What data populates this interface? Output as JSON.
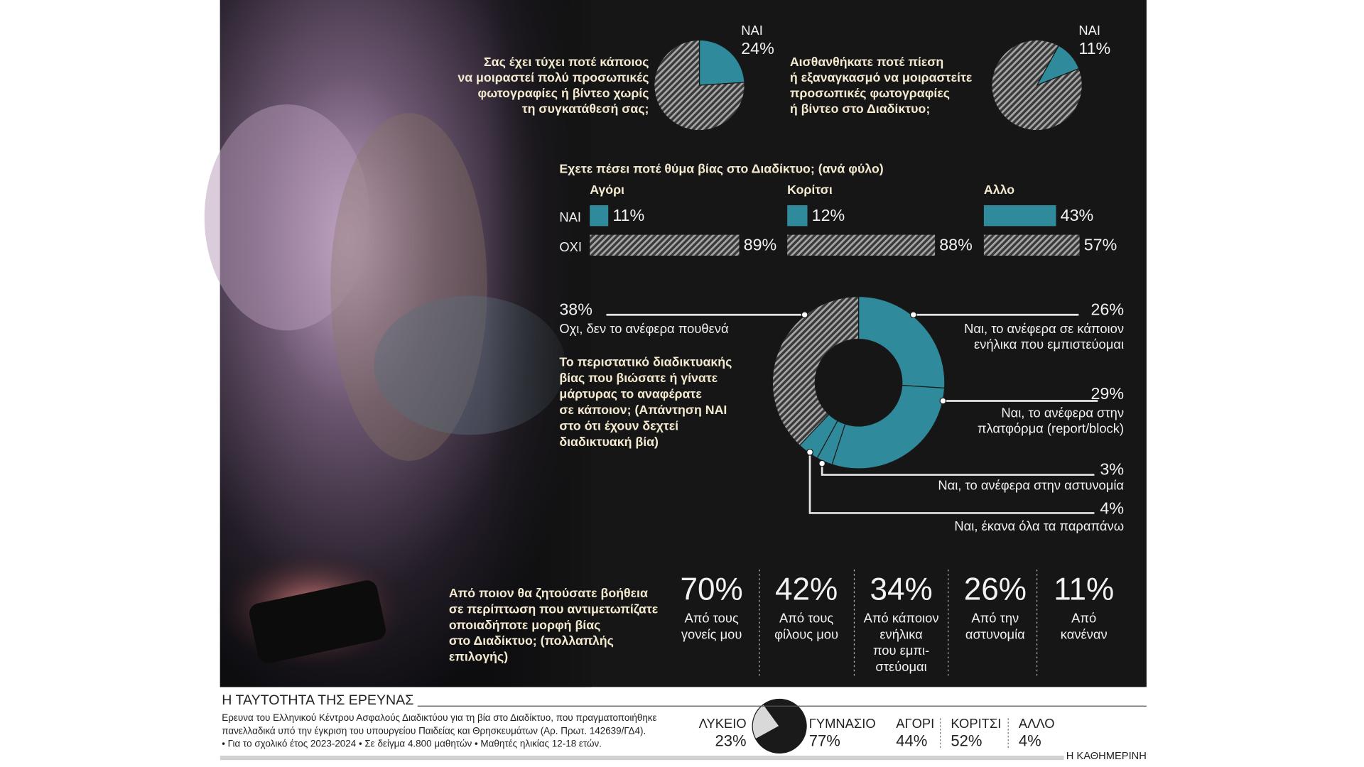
{
  "chart_data": [
    {
      "type": "pie",
      "title": [
        "Σας έχει τύχει ποτέ κάποιος",
        "να μοιραστεί πολύ προσωπικές",
        "φωτογραφίες ή βίντεο χωρίς",
        "τη συγκατάθεσή σας;"
      ],
      "categories": [
        "ΝΑΙ",
        null
      ],
      "values": [
        24,
        76
      ],
      "value_labels": [
        "24%",
        null
      ],
      "colors": [
        "#2f8b9c",
        "#8c8c8c"
      ],
      "hatched": [
        false,
        true
      ]
    },
    {
      "type": "pie",
      "title": [
        "Αισθανθήκατε ποτέ πίεση",
        "ή εξαναγκασμό να μοιραστείτε",
        "προσωπικές φωτογραφίες",
        "ή βίντεο στο Διαδίκτυο;"
      ],
      "categories": [
        "ΝΑΙ",
        null
      ],
      "values": [
        11,
        89
      ],
      "value_labels": [
        "11%",
        null
      ],
      "colors": [
        "#2f8b9c",
        "#8c8c8c"
      ],
      "hatched": [
        false,
        true
      ]
    },
    {
      "type": "bar",
      "title": "Εχετε πέσει ποτέ θύμα βίας στο Διαδίκτυο; (ανά φύλο)",
      "categories": [
        "Αγόρι",
        "Κορίτσι",
        "Αλλο"
      ],
      "xlim": [
        0,
        100
      ],
      "series": [
        {
          "name": "ΝΑΙ",
          "color": "#2f8b9c",
          "hatched": false,
          "values": [
            11,
            12,
            43
          ],
          "value_labels": [
            "11%",
            "12%",
            "43%"
          ]
        },
        {
          "name": "ΟΧΙ",
          "color": "#8c8c8c",
          "hatched": true,
          "values": [
            89,
            88,
            57
          ],
          "value_labels": [
            "89%",
            "88%",
            "57%"
          ]
        }
      ]
    },
    {
      "type": "donut",
      "title": [
        "Το περιστατικό διαδικτυακής",
        "βίας που βιώσατε ή γίνατε",
        "μάρτυρας το αναφέρατε",
        "σε κάποιον; (Απάντηση ΝΑΙ",
        "στο ότι έχουν δεχτεί",
        "διαδικτυακή βία)"
      ],
      "categories": [
        [
          "Ναι, το ανέφερα σε κάποιον",
          "ενήλικα που εμπιστεύομαι"
        ],
        [
          "Ναι, το ανέφερα στην",
          "πλατφόρμα (report/block)"
        ],
        [
          "Ναι, το ανέφερα στην αστυνομία"
        ],
        [
          "Ναι, έκανα όλα τα παραπάνω"
        ],
        [
          "Οχι, δεν το ανέφερα πουθενά"
        ]
      ],
      "values": [
        26,
        29,
        3,
        4,
        38
      ],
      "value_labels": [
        "26%",
        "29%",
        "3%",
        "4%",
        "38%"
      ],
      "colors": [
        "#2f8b9c",
        "#2f8b9c",
        "#2f8b9c",
        "#2f8b9c",
        "#8c8c8c"
      ],
      "hatched": [
        false,
        false,
        false,
        false,
        true
      ]
    },
    {
      "type": "stat",
      "title": [
        "Από ποιον θα ζητούσατε βοήθεια",
        "σε περίπτωση που αντιμετωπίζατε",
        "οποιαδήποτε μορφή βίας",
        "στο Διαδίκτυο; (πολλαπλής",
        "επιλογής)"
      ],
      "categories": [
        [
          "Από τους",
          "γονείς μου"
        ],
        [
          "Από τους",
          "φίλους μου"
        ],
        [
          "Από κάποιον",
          "ενήλικα",
          "που εμπι-",
          "στεύομαι"
        ],
        [
          "Από την",
          "αστυνομία"
        ],
        [
          "Από",
          "κανέναν"
        ]
      ],
      "values": [
        70,
        42,
        34,
        26,
        11
      ],
      "value_labels": [
        "70%",
        "42%",
        "34%",
        "26%",
        "11%"
      ]
    },
    {
      "type": "pie",
      "categories": [
        "ΛΥΚΕΙΟ",
        "ΓΥΜΝΑΣΙΟ"
      ],
      "values": [
        23,
        77
      ],
      "value_labels": [
        "23%",
        "77%"
      ],
      "colors": [
        "#d9d9d9",
        "#1a1a1a"
      ],
      "hatched": [
        false,
        false
      ]
    },
    {
      "type": "stat",
      "categories": [
        [
          "ΑΓΟΡΙ"
        ],
        [
          "ΚΟΡΙΤΣΙ"
        ],
        [
          "ΑΛΛΟ"
        ]
      ],
      "values": [
        44,
        52,
        4
      ],
      "value_labels": [
        "44%",
        "52%",
        "4%"
      ]
    }
  ],
  "footer": {
    "title": "Η ΤΑΥΤΟΤΗΤΑ ΤΗΣ ΕΡΕΥΝΑΣ",
    "text": [
      "Ερευνα του Ελληνικού Κέντρου Ασφαλούς Διαδικτύου για τη βία στο Διαδίκτυο, που πραγματοποιήθηκε",
      "πανελλαδικά υπό την έγκριση του υπουργείου Παιδείας και Θρησκευμάτων (Αρ. Πρωτ. 142639/ΓΔ4).",
      "• Για το σχολικό έτος 2023-2024 • Σε δείγμα 4.800 μαθητών • Μαθητές ηλικίας 12-18 ετών."
    ],
    "source": "Η ΚΑΘΗΜΕΡΙΝΗ"
  }
}
